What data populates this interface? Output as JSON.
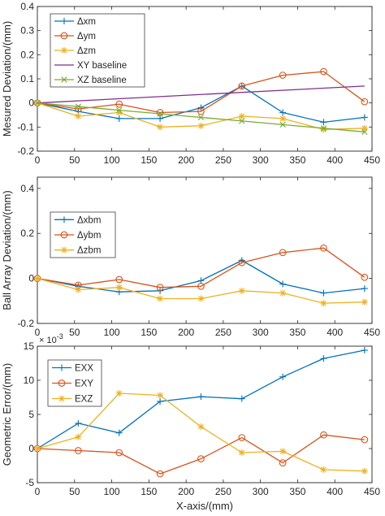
{
  "chart_data": [
    {
      "type": "line",
      "title": "",
      "xlabel": "",
      "ylabel": "Mesured Deviation/(mm)",
      "xlim": [
        0,
        450
      ],
      "ylim": [
        -0.2,
        0.4
      ],
      "xticks": [
        "0",
        "50",
        "100",
        "150",
        "200",
        "250",
        "300",
        "350",
        "400",
        "450"
      ],
      "yticks": [
        "-0.2",
        "-0.1",
        "0",
        "0.1",
        "0.2",
        "0.3",
        "0.4"
      ],
      "legend_position": "top-left",
      "grid": false,
      "series": [
        {
          "name": "Δxm",
          "color": "#0072BD",
          "marker": "plus",
          "x": [
            0,
            55,
            110,
            165,
            220,
            275,
            330,
            385,
            440
          ],
          "y": [
            0,
            -0.035,
            -0.065,
            -0.065,
            -0.02,
            0.07,
            -0.04,
            -0.08,
            -0.06
          ]
        },
        {
          "name": "Δym",
          "color": "#D95319",
          "marker": "circle",
          "x": [
            0,
            55,
            110,
            165,
            220,
            275,
            330,
            385,
            440
          ],
          "y": [
            0,
            -0.025,
            -0.005,
            -0.04,
            -0.035,
            0.07,
            0.115,
            0.13,
            0.005
          ]
        },
        {
          "name": "Δzm",
          "color": "#EDB120",
          "marker": "star",
          "x": [
            0,
            55,
            110,
            165,
            220,
            275,
            330,
            385,
            440
          ],
          "y": [
            0,
            -0.055,
            -0.04,
            -0.1,
            -0.095,
            -0.055,
            -0.065,
            -0.11,
            -0.105
          ]
        },
        {
          "name": "XY baseline",
          "color": "#7E2F8E",
          "marker": "none",
          "x": [
            0,
            440
          ],
          "y": [
            0,
            0.07
          ]
        },
        {
          "name": "XZ baseline",
          "color": "#77AC30",
          "marker": "x",
          "x": [
            0,
            55,
            110,
            165,
            220,
            275,
            330,
            385,
            440
          ],
          "y": [
            0,
            -0.015,
            -0.03,
            -0.045,
            -0.06,
            -0.075,
            -0.09,
            -0.105,
            -0.12
          ]
        }
      ]
    },
    {
      "type": "line",
      "title": "",
      "xlabel": "",
      "ylabel": "Ball Array Deviation/(mm)",
      "xlim": [
        0,
        450
      ],
      "ylim": [
        -0.2,
        0.45
      ],
      "xticks": [
        "0",
        "50",
        "100",
        "150",
        "200",
        "250",
        "300",
        "350",
        "400",
        "450"
      ],
      "yticks": [
        "-0.2",
        "0",
        "0.2",
        "0.4"
      ],
      "legend_position": "top-left",
      "grid": false,
      "series": [
        {
          "name": "Δxbm",
          "color": "#0072BD",
          "marker": "plus",
          "x": [
            0,
            55,
            110,
            165,
            220,
            275,
            330,
            385,
            440
          ],
          "y": [
            0,
            -0.035,
            -0.06,
            -0.055,
            -0.01,
            0.08,
            -0.025,
            -0.065,
            -0.045
          ]
        },
        {
          "name": "Δybm",
          "color": "#D95319",
          "marker": "circle",
          "x": [
            0,
            55,
            110,
            165,
            220,
            275,
            330,
            385,
            440
          ],
          "y": [
            0,
            -0.03,
            -0.005,
            -0.04,
            -0.035,
            0.07,
            0.115,
            0.135,
            0.005
          ]
        },
        {
          "name": "Δzbm",
          "color": "#EDB120",
          "marker": "star",
          "x": [
            0,
            55,
            110,
            165,
            220,
            275,
            330,
            385,
            440
          ],
          "y": [
            0,
            -0.05,
            -0.04,
            -0.09,
            -0.09,
            -0.055,
            -0.065,
            -0.11,
            -0.105
          ]
        }
      ]
    },
    {
      "type": "line",
      "title": "",
      "xlabel": "X-axis/(mm)",
      "ylabel": "Geometric Error/(mm)",
      "y_exponent": "× 10",
      "y_exponent_power": "-3",
      "xlim": [
        0,
        450
      ],
      "ylim": [
        -5,
        15
      ],
      "xticks": [
        "0",
        "50",
        "100",
        "150",
        "200",
        "250",
        "300",
        "350",
        "400",
        "450"
      ],
      "yticks": [
        "-5",
        "0",
        "5",
        "10",
        "15"
      ],
      "legend_position": "top-left",
      "grid": false,
      "series": [
        {
          "name": "EXX",
          "color": "#0072BD",
          "marker": "plus",
          "x": [
            0,
            55,
            110,
            165,
            220,
            275,
            330,
            385,
            440
          ],
          "y": [
            0,
            3.7,
            2.3,
            6.9,
            7.6,
            7.3,
            10.5,
            13.2,
            14.4
          ]
        },
        {
          "name": "EXY",
          "color": "#D95319",
          "marker": "circle",
          "x": [
            0,
            55,
            110,
            165,
            220,
            275,
            330,
            385,
            440
          ],
          "y": [
            0,
            -0.3,
            -0.6,
            -3.7,
            -1.5,
            1.6,
            -2.1,
            2.0,
            1.3
          ]
        },
        {
          "name": "EXZ",
          "color": "#EDB120",
          "marker": "star",
          "x": [
            0,
            55,
            110,
            165,
            220,
            275,
            330,
            385,
            440
          ],
          "y": [
            0,
            1.7,
            8.1,
            7.8,
            3.2,
            -0.6,
            -0.4,
            -3.1,
            -3.3
          ]
        }
      ]
    }
  ]
}
